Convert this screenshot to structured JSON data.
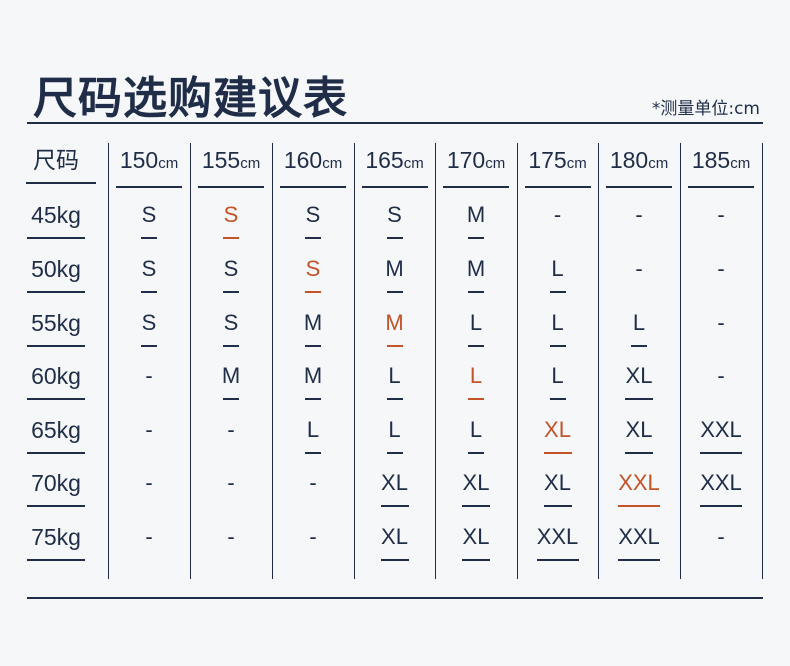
{
  "title": "尺码选购建议表",
  "unit_note": "*测量单位:cm",
  "corner_label": "尺码",
  "height_unit": "cm",
  "colors": {
    "text": "#1f2d48",
    "highlight": "#c4532a",
    "background": "#f6f7f9"
  },
  "heights": [
    "150",
    "155",
    "160",
    "165",
    "170",
    "175",
    "180",
    "185"
  ],
  "rows": [
    {
      "weight": "45kg",
      "sizes": [
        "S",
        "S",
        "S",
        "S",
        "M",
        "-",
        "-",
        "-"
      ],
      "highlight": 1
    },
    {
      "weight": "50kg",
      "sizes": [
        "S",
        "S",
        "S",
        "M",
        "M",
        "L",
        "-",
        "-"
      ],
      "highlight": 2
    },
    {
      "weight": "55kg",
      "sizes": [
        "S",
        "S",
        "M",
        "M",
        "L",
        "L",
        "L",
        "-"
      ],
      "highlight": 3
    },
    {
      "weight": "60kg",
      "sizes": [
        "-",
        "M",
        "M",
        "L",
        "L",
        "L",
        "XL",
        "-"
      ],
      "highlight": 4
    },
    {
      "weight": "65kg",
      "sizes": [
        "-",
        "-",
        "L",
        "L",
        "L",
        "XL",
        "XL",
        "XXL"
      ],
      "highlight": 5
    },
    {
      "weight": "70kg",
      "sizes": [
        "-",
        "-",
        "-",
        "XL",
        "XL",
        "XL",
        "XXL",
        "XXL"
      ],
      "highlight": 6
    },
    {
      "weight": "75kg",
      "sizes": [
        "-",
        "-",
        "-",
        "XL",
        "XL",
        "XXL",
        "XXL",
        "-"
      ],
      "highlight": -1
    }
  ]
}
